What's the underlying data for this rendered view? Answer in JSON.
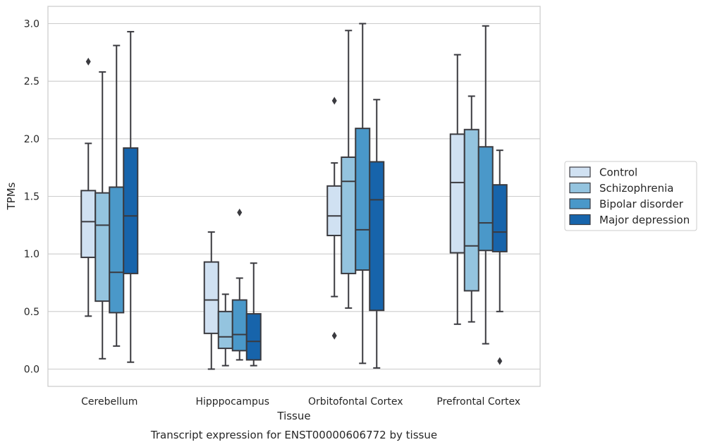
{
  "chart_data": {
    "type": "box",
    "title": "",
    "caption": "Transcript expression for ENST00000606772 by tissue",
    "xlabel": "Tissue",
    "ylabel": "TPMs",
    "ylim": [
      -0.15,
      3.15
    ],
    "yticks": [
      0.0,
      0.5,
      1.0,
      1.5,
      2.0,
      2.5,
      3.0
    ],
    "ytick_labels": [
      "0.0",
      "0.5",
      "1.0",
      "1.5",
      "2.0",
      "2.5",
      "3.0"
    ],
    "grid": "horizontal",
    "legend_position": "right",
    "categories": [
      "Cerebellum",
      "Hipppocampus",
      "Orbitofontal Cortex",
      "Prefrontal Cortex"
    ],
    "series": [
      {
        "name": "Control",
        "color": "#d0e1f2",
        "boxes": [
          {
            "whisker_low": 0.46,
            "q1": 0.97,
            "median": 1.28,
            "q3": 1.55,
            "whisker_high": 1.96,
            "outliers": [
              2.67
            ]
          },
          {
            "whisker_low": 0.0,
            "q1": 0.31,
            "median": 0.6,
            "q3": 0.93,
            "whisker_high": 1.19,
            "outliers": []
          },
          {
            "whisker_low": 0.63,
            "q1": 1.16,
            "median": 1.33,
            "q3": 1.59,
            "whisker_high": 1.79,
            "outliers": [
              2.33,
              0.29
            ]
          },
          {
            "whisker_low": 0.39,
            "q1": 1.01,
            "median": 1.62,
            "q3": 2.04,
            "whisker_high": 2.73,
            "outliers": []
          }
        ]
      },
      {
        "name": "Schizophrenia",
        "color": "#94c4df",
        "boxes": [
          {
            "whisker_low": 0.09,
            "q1": 0.59,
            "median": 1.25,
            "q3": 1.53,
            "whisker_high": 2.58,
            "outliers": []
          },
          {
            "whisker_low": 0.03,
            "q1": 0.18,
            "median": 0.28,
            "q3": 0.5,
            "whisker_high": 0.65,
            "outliers": []
          },
          {
            "whisker_low": 0.53,
            "q1": 0.83,
            "median": 1.63,
            "q3": 1.84,
            "whisker_high": 2.94,
            "outliers": []
          },
          {
            "whisker_low": 0.41,
            "q1": 0.68,
            "median": 1.07,
            "q3": 2.08,
            "whisker_high": 2.37,
            "outliers": []
          }
        ]
      },
      {
        "name": "Bipolar disorder",
        "color": "#4a98c9",
        "boxes": [
          {
            "whisker_low": 0.2,
            "q1": 0.49,
            "median": 0.84,
            "q3": 1.58,
            "whisker_high": 2.81,
            "outliers": []
          },
          {
            "whisker_low": 0.08,
            "q1": 0.16,
            "median": 0.3,
            "q3": 0.6,
            "whisker_high": 0.79,
            "outliers": [
              1.36
            ]
          },
          {
            "whisker_low": 0.05,
            "q1": 0.86,
            "median": 1.21,
            "q3": 2.09,
            "whisker_high": 3.0,
            "outliers": []
          },
          {
            "whisker_low": 0.22,
            "q1": 1.03,
            "median": 1.27,
            "q3": 1.93,
            "whisker_high": 2.98,
            "outliers": []
          }
        ]
      },
      {
        "name": "Major depression",
        "color": "#1764ab",
        "boxes": [
          {
            "whisker_low": 0.06,
            "q1": 0.83,
            "median": 1.33,
            "q3": 1.92,
            "whisker_high": 2.93,
            "outliers": []
          },
          {
            "whisker_low": 0.03,
            "q1": 0.08,
            "median": 0.24,
            "q3": 0.48,
            "whisker_high": 0.92,
            "outliers": []
          },
          {
            "whisker_low": 0.01,
            "q1": 0.51,
            "median": 1.47,
            "q3": 1.8,
            "whisker_high": 2.34,
            "outliers": []
          },
          {
            "whisker_low": 0.5,
            "q1": 1.02,
            "median": 1.19,
            "q3": 1.6,
            "whisker_high": 1.9,
            "outliers": [
              0.07
            ]
          }
        ]
      }
    ]
  }
}
